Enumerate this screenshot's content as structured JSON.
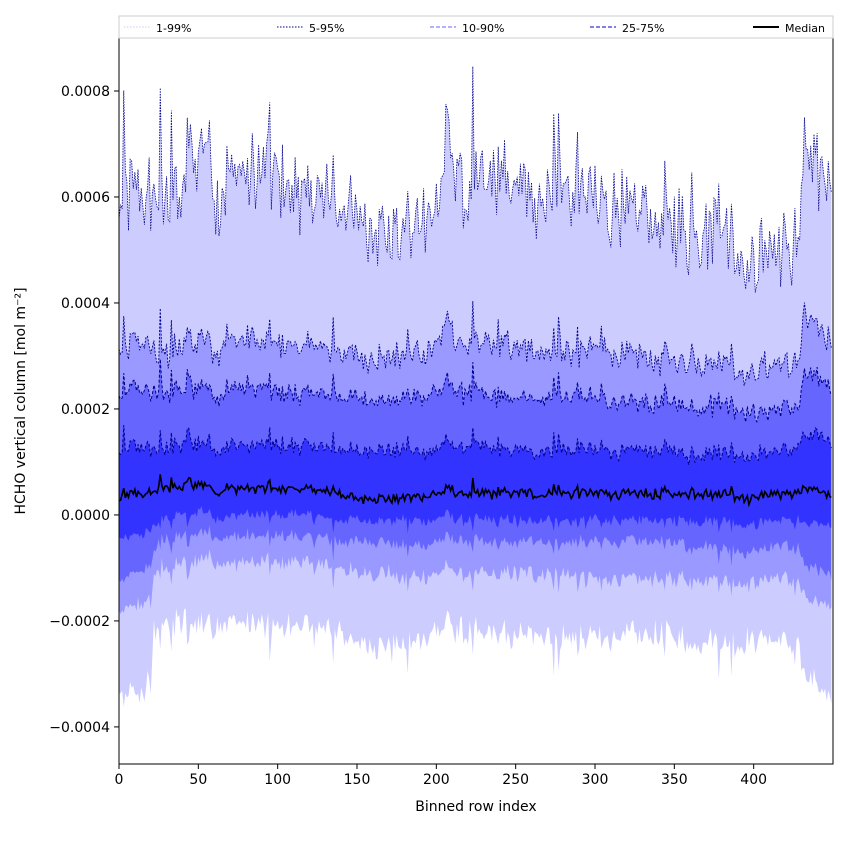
{
  "chart_data": {
    "type": "area",
    "title": "",
    "xlabel": "Binned row index",
    "ylabel": "HCHO vertical column [mol m⁻²]",
    "xlim": [
      0,
      450
    ],
    "ylim": [
      -0.00047,
      0.0009
    ],
    "x_ticks": [
      0,
      50,
      100,
      150,
      200,
      250,
      300,
      350,
      400
    ],
    "x_tick_labels": [
      "0",
      "50",
      "100",
      "150",
      "200",
      "250",
      "300",
      "350",
      "400"
    ],
    "y_ticks": [
      -0.0004,
      -0.0002,
      0.0,
      0.0002,
      0.0004,
      0.0006,
      0.0008
    ],
    "y_tick_labels": [
      "−0.0004",
      "−0.0002",
      "0.0000",
      "0.0002",
      "0.0004",
      "0.0006",
      "0.0008"
    ],
    "grid": false,
    "legend": {
      "placement": "top, above plot",
      "entries": [
        {
          "label": "1-99%",
          "color": "#ccccff",
          "style": "dotted"
        },
        {
          "label": "5-95%",
          "color": "#00008b",
          "style": "dotted"
        },
        {
          "label": "10-90%",
          "color": "#6666ff",
          "style": "dashed"
        },
        {
          "label": "25-75%",
          "color": "#0000cd",
          "style": "dashed"
        },
        {
          "label": "Median",
          "color": "#000000",
          "style": "solid"
        }
      ]
    },
    "band_colors": {
      "p01_p99": "#ccccff",
      "p05_p95": "#9999ff",
      "p10_p90": "#6666ff",
      "p25_p75": "#3333ff",
      "median": "#000000",
      "edge": "#00008b"
    },
    "x_anchor": [
      0,
      10,
      20,
      22,
      25,
      40,
      55,
      62,
      70,
      90,
      100,
      118,
      140,
      150,
      155,
      170,
      180,
      200,
      207,
      215,
      246,
      260,
      280,
      300,
      320,
      350,
      360,
      380,
      397,
      410,
      420,
      428,
      432,
      449
    ],
    "series": [
      {
        "name": "1-99%",
        "bound": "upper",
        "values": [
          0.00058,
          0.00062,
          0.0006,
          0.0006,
          0.00059,
          0.0006,
          0.00072,
          0.00058,
          0.00064,
          0.00065,
          0.00063,
          0.00061,
          0.00058,
          0.00055,
          0.00056,
          0.00053,
          0.00052,
          0.00058,
          0.00072,
          0.00062,
          0.00063,
          0.0006,
          0.00061,
          0.00059,
          0.00058,
          0.00055,
          0.00053,
          0.00054,
          0.00047,
          0.00051,
          0.0005,
          0.0005,
          0.00068,
          0.00062
        ]
      },
      {
        "name": "5-95%",
        "bound": "upper",
        "values": [
          0.0003,
          0.00033,
          0.00031,
          0.00031,
          0.0003,
          0.00031,
          0.00034,
          0.0003,
          0.00033,
          0.00033,
          0.00032,
          0.00032,
          0.00031,
          0.0003,
          0.0003,
          0.0003,
          0.0003,
          0.00032,
          0.00036,
          0.00032,
          0.00032,
          0.00031,
          0.00031,
          0.00031,
          0.0003,
          0.00029,
          0.00029,
          0.00029,
          0.00027,
          0.00028,
          0.00028,
          0.00028,
          0.00037,
          0.00033
        ]
      },
      {
        "name": "10-90%",
        "bound": "upper",
        "values": [
          0.00022,
          0.00024,
          0.00023,
          0.00023,
          0.00023,
          0.00023,
          0.00025,
          0.00022,
          0.00024,
          0.00024,
          0.00023,
          0.00023,
          0.00022,
          0.00022,
          0.00022,
          0.00022,
          0.00022,
          0.00023,
          0.00025,
          0.00023,
          0.00022,
          0.00022,
          0.00022,
          0.00022,
          0.00021,
          0.00021,
          0.0002,
          0.00021,
          0.00019,
          0.0002,
          0.0002,
          0.0002,
          0.00027,
          0.00024
        ]
      },
      {
        "name": "25-75%",
        "bound": "upper",
        "values": [
          0.00012,
          0.00013,
          0.00012,
          0.00012,
          0.00012,
          0.00013,
          0.00014,
          0.00012,
          0.00013,
          0.00013,
          0.00013,
          0.00013,
          0.00012,
          0.00012,
          0.00012,
          0.00012,
          0.00012,
          0.00012,
          0.00014,
          0.00013,
          0.00012,
          0.00012,
          0.00012,
          0.00012,
          0.00012,
          0.00012,
          0.00011,
          0.00012,
          0.00011,
          0.00012,
          0.00012,
          0.00012,
          0.00015,
          0.00014
        ]
      },
      {
        "name": "Median",
        "values": [
          3e-05,
          4e-05,
          4e-05,
          4e-05,
          5e-05,
          5e-05,
          6e-05,
          4e-05,
          5e-05,
          5e-05,
          5e-05,
          5e-05,
          4e-05,
          3e-05,
          3e-05,
          3e-05,
          3e-05,
          4e-05,
          5e-05,
          4e-05,
          4e-05,
          4e-05,
          4e-05,
          4e-05,
          4e-05,
          4e-05,
          4e-05,
          4e-05,
          3e-05,
          4e-05,
          4e-05,
          4e-05,
          5e-05,
          4e-05
        ]
      },
      {
        "name": "25-75%",
        "bound": "lower",
        "values": [
          -4e-05,
          -4e-05,
          -3e-05,
          -2e-05,
          -1e-05,
          0.0,
          1e-05,
          -1e-05,
          0.0,
          0.0,
          0.0,
          0.0,
          -1e-05,
          -1e-05,
          -1e-05,
          -1e-05,
          -1e-05,
          -1e-05,
          0.0,
          -1e-05,
          -1e-05,
          -1e-05,
          -1e-05,
          -1e-05,
          -1e-05,
          -1e-05,
          -1e-05,
          -1e-05,
          -2e-05,
          -1e-05,
          -1e-05,
          -1e-05,
          -2e-05,
          -2e-05
        ]
      },
      {
        "name": "10-90%",
        "bound": "lower",
        "values": [
          -0.00012,
          -0.00011,
          -0.0001,
          -7e-05,
          -5e-05,
          -4e-05,
          -3e-05,
          -4e-05,
          -4e-05,
          -4e-05,
          -4e-05,
          -4e-05,
          -5e-05,
          -5e-05,
          -5e-05,
          -5e-05,
          -6e-05,
          -5e-05,
          -4e-05,
          -5e-05,
          -5e-05,
          -5e-05,
          -5e-05,
          -5e-05,
          -5e-05,
          -5e-05,
          -6e-05,
          -6e-05,
          -7e-05,
          -6e-05,
          -6e-05,
          -6e-05,
          -0.0001,
          -0.00011
        ]
      },
      {
        "name": "5-95%",
        "bound": "lower",
        "values": [
          -0.00018,
          -0.00017,
          -0.00016,
          -0.00012,
          -0.0001,
          -9e-05,
          -8e-05,
          -9e-05,
          -9e-05,
          -9e-05,
          -9e-05,
          -9e-05,
          -0.0001,
          -0.00011,
          -0.00011,
          -0.00011,
          -0.00012,
          -0.00011,
          -0.0001,
          -0.00011,
          -0.00011,
          -0.00011,
          -0.00011,
          -0.00012,
          -0.00012,
          -0.00012,
          -0.00012,
          -0.00012,
          -0.00013,
          -0.00012,
          -0.00012,
          -0.00013,
          -0.00016,
          -0.00017
        ]
      },
      {
        "name": "1-99%",
        "bound": "lower",
        "values": [
          -0.00034,
          -0.00034,
          -0.00032,
          -0.00022,
          -0.00021,
          -0.0002,
          -0.0002,
          -0.00021,
          -0.0002,
          -0.00021,
          -0.00021,
          -0.00021,
          -0.00022,
          -0.00024,
          -0.00024,
          -0.00025,
          -0.00025,
          -0.00022,
          -0.0002,
          -0.00022,
          -0.00023,
          -0.00022,
          -0.00023,
          -0.00023,
          -0.00023,
          -0.00023,
          -0.00024,
          -0.00024,
          -0.00024,
          -0.00023,
          -0.00024,
          -0.00024,
          -0.00031,
          -0.00034
        ]
      }
    ]
  }
}
